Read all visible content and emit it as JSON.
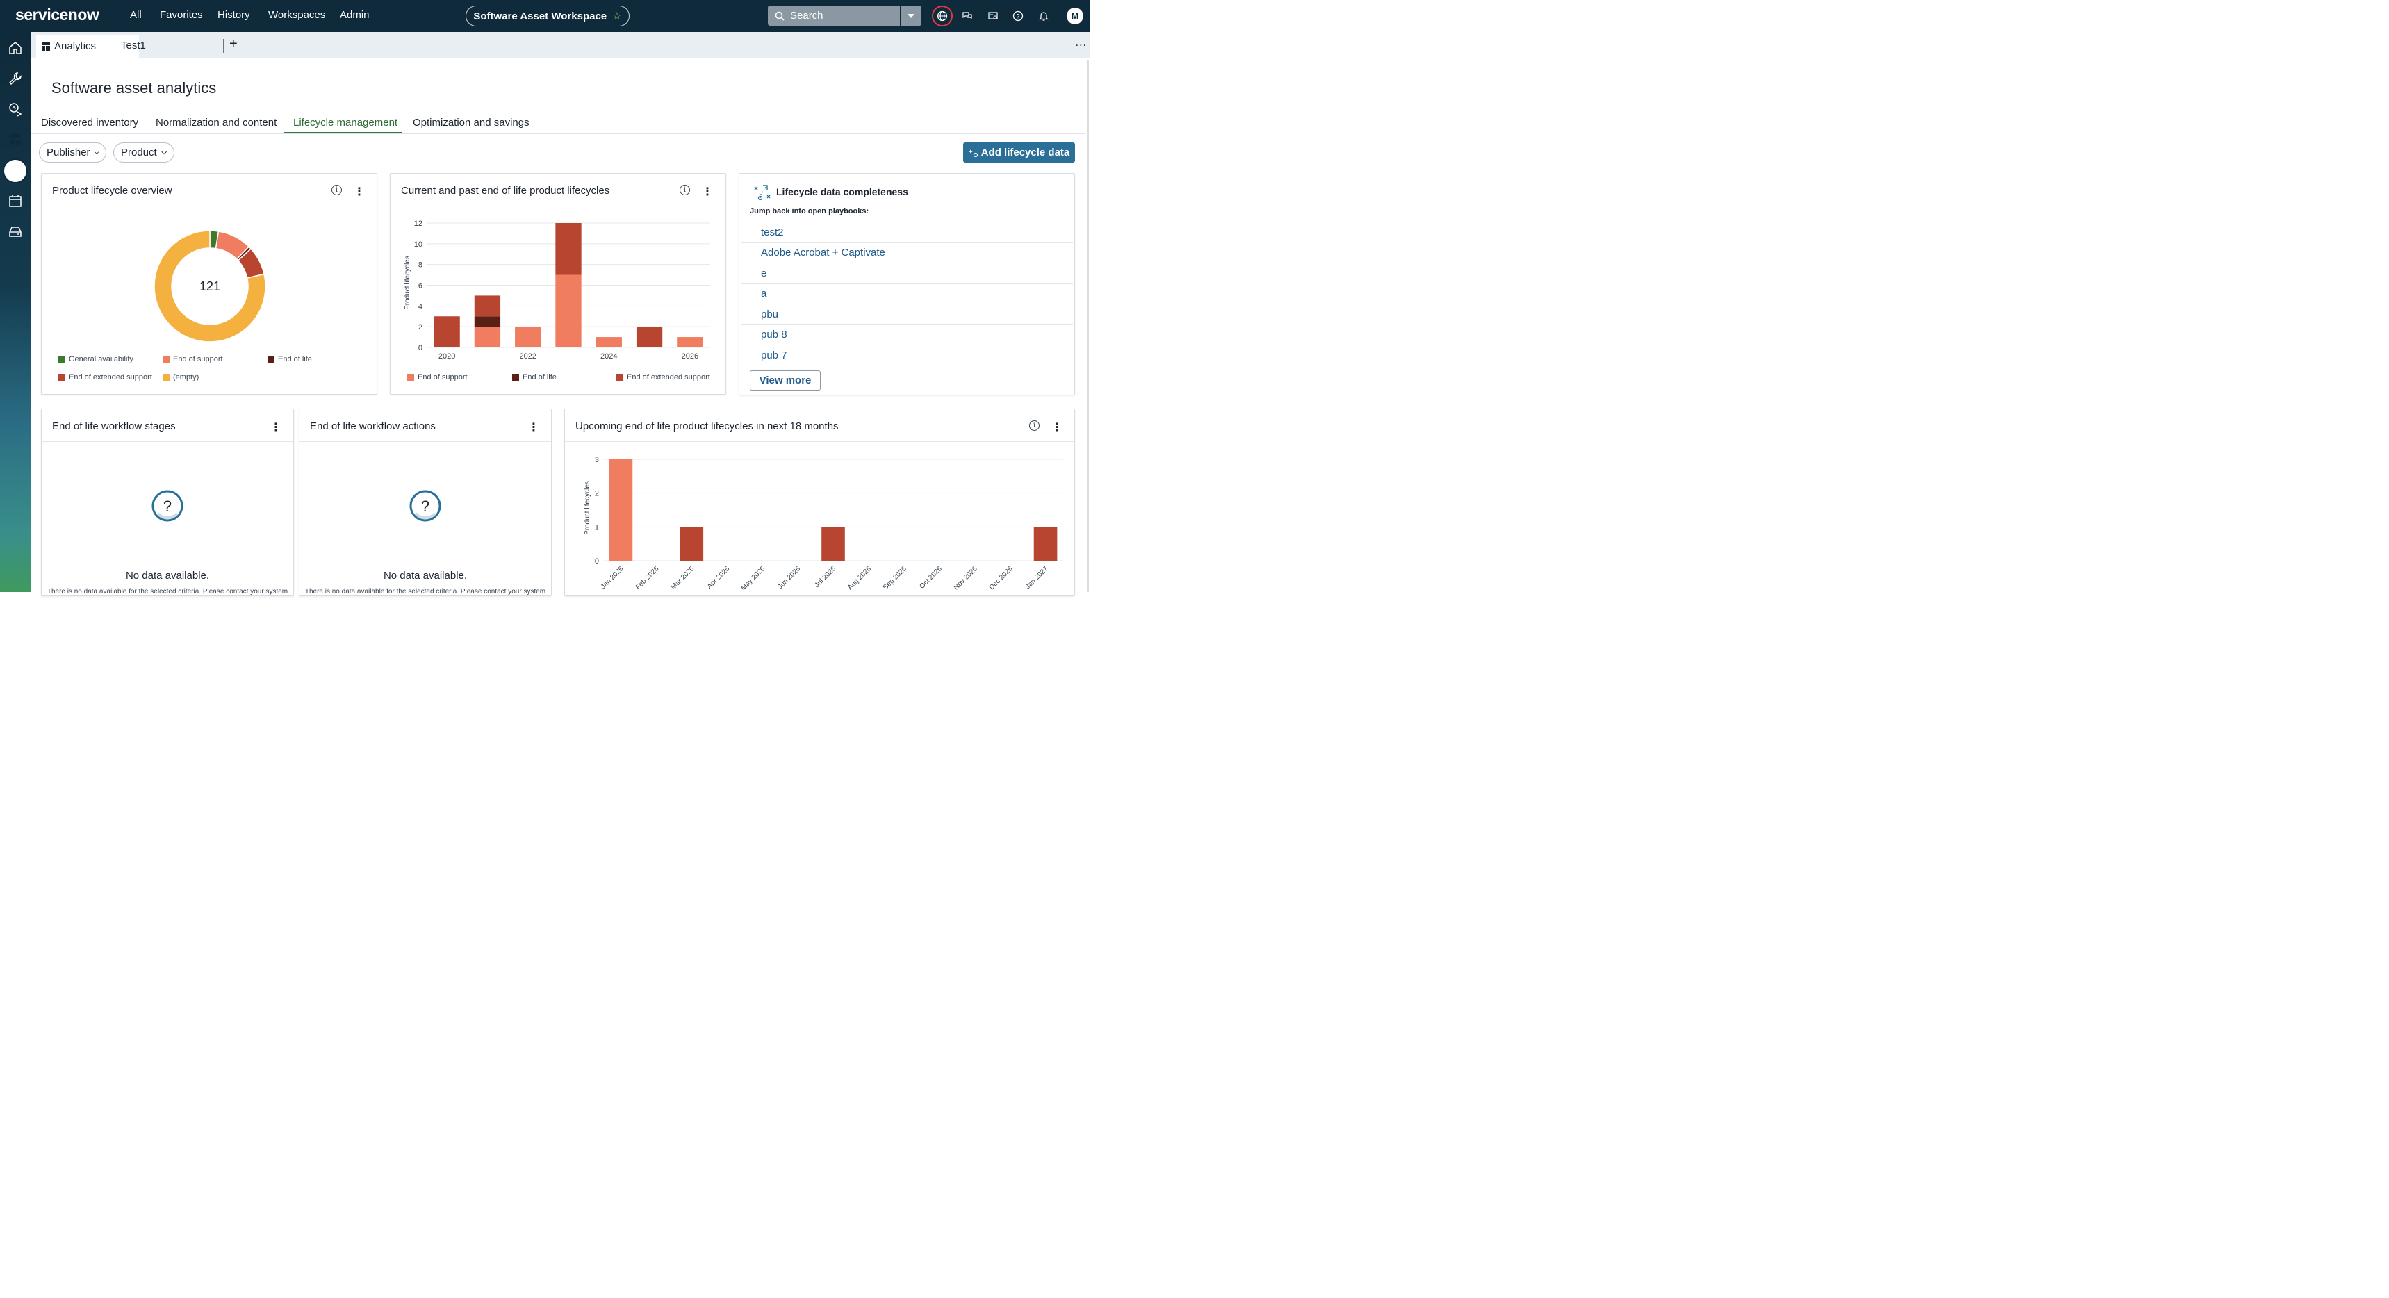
{
  "app": {
    "logo_text": "servicenow",
    "nav": [
      "All",
      "Favorites",
      "History",
      "Workspaces",
      "Admin"
    ],
    "workspace_title": "Software Asset Workspace",
    "search_placeholder": "Search",
    "avatar_initial": "M"
  },
  "tabs": {
    "items": [
      {
        "label": "Analytics",
        "active": true
      },
      {
        "label": "Test1",
        "active": false
      }
    ],
    "add_label": "+",
    "more_label": "..."
  },
  "page": {
    "title": "Software asset analytics",
    "subtabs": [
      "Discovered inventory",
      "Normalization and content",
      "Lifecycle management",
      "Optimization and savings"
    ],
    "active_subtab": "Lifecycle management",
    "filters": [
      "Publisher",
      "Product"
    ],
    "add_button": "Add lifecycle data"
  },
  "colors": {
    "nav_bg": "#0f2a3a",
    "general_availability": "#3e7a2e",
    "end_of_support": "#f07d5f",
    "end_of_life": "#5a2016",
    "end_of_extended_support": "#b8452f",
    "empty": "#f5b13f",
    "accent_button": "#2a6f97"
  },
  "cards": {
    "overview": {
      "title": "Product lifecycle overview",
      "chart_data": {
        "type": "pie",
        "total_label": "121",
        "slices": [
          {
            "label": "General availability",
            "value": 3
          },
          {
            "label": "End of support",
            "value": 12
          },
          {
            "label": "End of life",
            "value": 1
          },
          {
            "label": "End of extended support",
            "value": 10
          },
          {
            "label": "(empty)",
            "value": 95
          }
        ],
        "legend": [
          "General availability",
          "End of support",
          "End of life",
          "End of extended support",
          "(empty)"
        ]
      }
    },
    "eol_past": {
      "title": "Current and past end of life product lifecycles",
      "chart_data": {
        "type": "bar",
        "stacked": true,
        "ylabel": "Product lifecycles",
        "ylim": [
          0,
          12
        ],
        "yticks": [
          "0",
          "2",
          "4",
          "6",
          "8",
          "10",
          "12"
        ],
        "xticks": [
          "2020",
          "2022",
          "2024",
          "2026"
        ],
        "categories": [
          "2020",
          "2021",
          "2022",
          "2023",
          "2024",
          "2025",
          "2026"
        ],
        "series": [
          {
            "name": "End of support",
            "values": [
              0,
              2,
              2,
              7,
              1,
              0,
              1
            ]
          },
          {
            "name": "End of life",
            "values": [
              0,
              1,
              0,
              0,
              0,
              0,
              0
            ]
          },
          {
            "name": "End of extended support",
            "values": [
              3,
              2,
              0,
              5,
              0,
              2,
              0
            ]
          }
        ],
        "legend": [
          "End of support",
          "End of life",
          "End of extended support"
        ]
      }
    },
    "completeness": {
      "title": "Lifecycle data completeness",
      "subtitle": "Jump back into open playbooks:",
      "playbooks": [
        "test2",
        "Adobe Acrobat + Captivate",
        "e",
        "a",
        "pbu",
        "pub 8",
        "pub 7"
      ],
      "view_more": "View more"
    },
    "wf_stages": {
      "title": "End of life workflow stages",
      "empty_text": "No data available.",
      "empty_sub": "There is no data available for the selected criteria. Please contact your system administrator."
    },
    "wf_actions": {
      "title": "End of life workflow actions",
      "empty_text": "No data available.",
      "empty_sub": "There is no data available for the selected criteria. Please contact your system administrator."
    },
    "upcoming": {
      "title": "Upcoming end of life product lifecycles in next 18 months",
      "chart_data": {
        "type": "bar",
        "ylabel": "Product lifecycles",
        "ylim": [
          0,
          3
        ],
        "yticks": [
          "0",
          "1",
          "2",
          "3"
        ],
        "categories": [
          "Jan 2026",
          "Feb 2026",
          "Mar 2026",
          "Apr 2026",
          "May 2026",
          "Jun 2026",
          "Jul 2026",
          "Aug 2026",
          "Sep 2026",
          "Oct 2026",
          "Nov 2026",
          "Dec 2026",
          "Jan 2027"
        ],
        "series": [
          {
            "name": "End of support",
            "values": [
              3,
              0,
              0,
              0,
              0,
              0,
              0,
              0,
              0,
              0,
              0,
              0,
              0
            ]
          },
          {
            "name": "End of extended support",
            "values": [
              0,
              0,
              1,
              0,
              0,
              0,
              1,
              0,
              0,
              0,
              0,
              0,
              1
            ]
          }
        ]
      }
    }
  }
}
